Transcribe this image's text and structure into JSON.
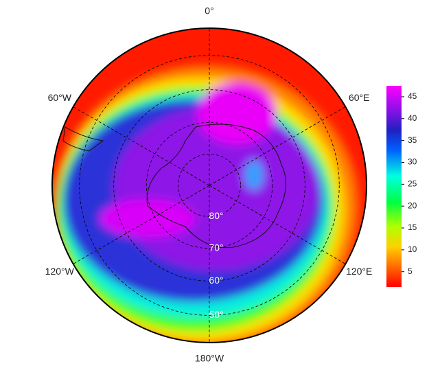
{
  "map": {
    "longitude_labels": [
      {
        "value": 0,
        "label": "0°"
      },
      {
        "value": 60,
        "label": "60°E"
      },
      {
        "value": 120,
        "label": "120°E"
      },
      {
        "value": 180,
        "label": "180°W"
      },
      {
        "value": 240,
        "label": "120°W"
      },
      {
        "value": 300,
        "label": "60°W"
      }
    ],
    "latitude_circles": [
      {
        "value": 80,
        "label": "80°"
      },
      {
        "value": 70,
        "label": "70°"
      },
      {
        "value": 60,
        "label": "60°"
      },
      {
        "value": 50,
        "label": "50°"
      }
    ],
    "colorbar": {
      "lim": [
        1.5,
        47.5
      ],
      "ticks": [
        5,
        10,
        15,
        20,
        25,
        30,
        35,
        40,
        45
      ]
    }
  }
}
